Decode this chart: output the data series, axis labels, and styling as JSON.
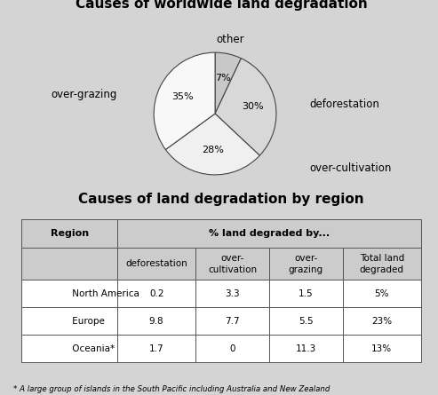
{
  "pie_title": "Causes of worldwide land degradation",
  "table_title": "Causes of land degradation by region",
  "pie_labels": [
    "other",
    "deforestation",
    "over-cultivation",
    "over-grazing"
  ],
  "pie_sizes": [
    7,
    30,
    28,
    35
  ],
  "pie_colors": [
    "#c8c8c8",
    "#d8d8d8",
    "#f0f0f0",
    "#f8f8f8"
  ],
  "table_col_labels": [
    "Region",
    "deforestation",
    "over-\ncultivation",
    "over-\ngrazing",
    "Total land\ndegraded"
  ],
  "table_data": [
    [
      "North America",
      "0.2",
      "3.3",
      "1.5",
      "5%"
    ],
    [
      "Europe",
      "9.8",
      "7.7",
      "5.5",
      "23%"
    ],
    [
      "Oceania*",
      "1.7",
      "0",
      "11.3",
      "13%"
    ]
  ],
  "footnote": "* A large group of islands in the South Pacific including Australia and New Zealand",
  "bg_color": "#d4d4d4",
  "table_bg": "#e8e8e8",
  "header_bg": "#cccccc",
  "cell_bg": "#ffffff"
}
